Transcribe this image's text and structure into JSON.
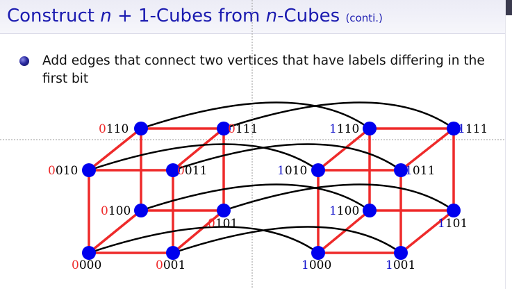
{
  "slide": {
    "title_prefix": "Construct ",
    "title_math1": "n",
    "title_mid": " + 1-Cubes from ",
    "title_math2": "n",
    "title_suffix": "-Cubes ",
    "title_note": "(conti.)"
  },
  "bullet": {
    "text": "Add edges that connect two vertices that have labels differing in the first bit"
  },
  "colors": {
    "title": "#1b1bb0",
    "vertex": "#0000ee",
    "cube_edge": "#ee2a2a",
    "connecting_edge": "#000000",
    "first_bit_left": "#ee2a2a",
    "first_bit_right": "#1414cc"
  },
  "labels": {
    "v0000": {
      "first": "0",
      "rest": "000"
    },
    "v0001": {
      "first": "0",
      "rest": "001"
    },
    "v0010": {
      "first": "0",
      "rest": "010"
    },
    "v0011": {
      "first": "0",
      "rest": "011"
    },
    "v0100": {
      "first": "0",
      "rest": "100"
    },
    "v0101": {
      "first": "0",
      "rest": "101"
    },
    "v0110": {
      "first": "0",
      "rest": "110"
    },
    "v0111": {
      "first": "0",
      "rest": "111"
    },
    "v1000": {
      "first": "1",
      "rest": "000"
    },
    "v1001": {
      "first": "1",
      "rest": "001"
    },
    "v1010": {
      "first": "1",
      "rest": "010"
    },
    "v1011": {
      "first": "1",
      "rest": "011"
    },
    "v1100": {
      "first": "1",
      "rest": "100"
    },
    "v1101": {
      "first": "1",
      "rest": "101"
    },
    "v1110": {
      "first": "1",
      "rest": "110"
    },
    "v1111": {
      "first": "1",
      "rest": "111"
    }
  }
}
